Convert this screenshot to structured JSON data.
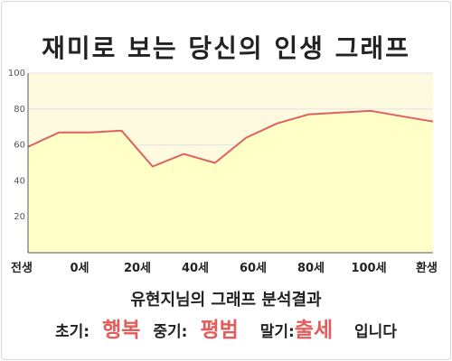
{
  "title": "재미로 보는 당신의 인생 그래프",
  "colors": {
    "area_fill": "#ffffc8",
    "plot_bg": "#fdfadf",
    "line": "#e06060",
    "result_highlight": "#e55a5a",
    "axis": "#555555",
    "grid": "#e3e3e3"
  },
  "chart_data": {
    "type": "area",
    "title": "",
    "xlabel": "",
    "ylabel": "",
    "ylim": [
      0,
      100
    ],
    "yticks": [
      20,
      40,
      60,
      80,
      100
    ],
    "x_tick_labels": [
      "전생",
      "0세",
      "20세",
      "40세",
      "60세",
      "80세",
      "100세",
      "환생"
    ],
    "grid": true,
    "series": [
      {
        "values": [
          59,
          67,
          67,
          68,
          48,
          55,
          50,
          64,
          72,
          77,
          78,
          79,
          76,
          73
        ]
      }
    ]
  },
  "summary": {
    "heading": "유현지님의 그래프 분석결과",
    "early_label": "초기:",
    "early_value": "행복",
    "middle_label": "중기:",
    "middle_value": "평범",
    "late_label": "말기:",
    "late_value": "출세",
    "tail": "입니다"
  }
}
